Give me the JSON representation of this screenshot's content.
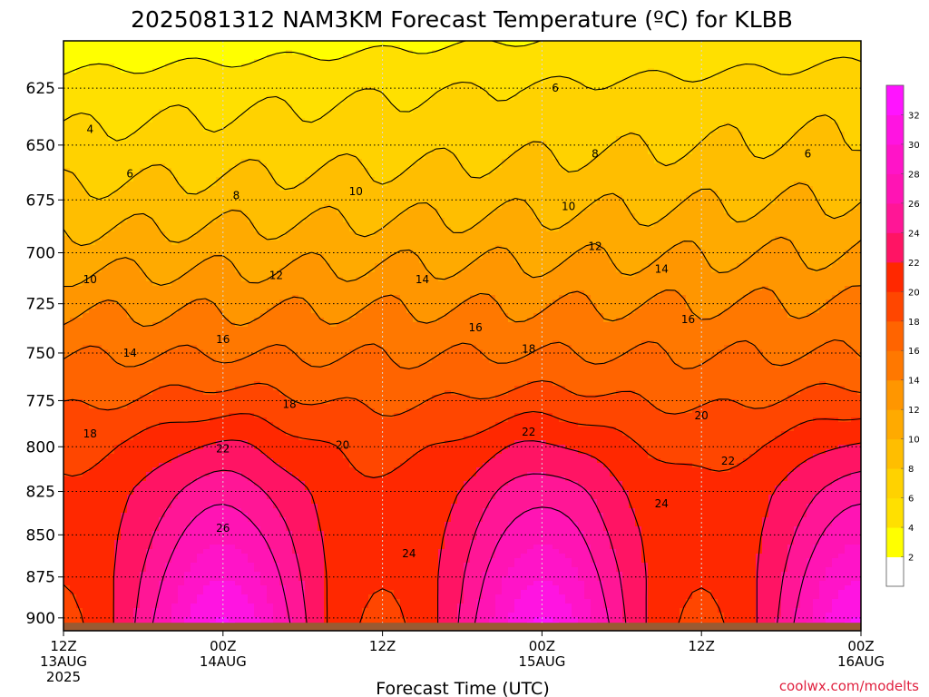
{
  "title": "2025081312 NAM3KM Forecast Temperature (ºC) for KLBB",
  "credit": "coolwx.com/modelts",
  "chart_data": {
    "type": "heatmap",
    "title": "2025081312 NAM3KM Forecast Temperature (ºC) for KLBB",
    "xlabel": "Forecast Time (UTC)",
    "ylabel": "",
    "x_ticks": [
      {
        "hour": 0,
        "lines": [
          "12Z",
          "13AUG",
          "2025"
        ]
      },
      {
        "hour": 12,
        "lines": [
          "00Z",
          "14AUG"
        ]
      },
      {
        "hour": 24,
        "lines": [
          "12Z"
        ]
      },
      {
        "hour": 36,
        "lines": [
          "00Z",
          "15AUG"
        ]
      },
      {
        "hour": 48,
        "lines": [
          "12Z"
        ]
      },
      {
        "hour": 60,
        "lines": [
          "00Z",
          "16AUG"
        ]
      }
    ],
    "xlim": [
      0,
      60
    ],
    "y_ticks": [
      625,
      650,
      675,
      700,
      725,
      750,
      775,
      800,
      825,
      850,
      875,
      900
    ],
    "ylim": [
      605,
      908
    ],
    "y_scale": "log-pressure (inverted)",
    "grid": true,
    "surface_pressure": 903,
    "colorbar": {
      "levels": [
        0,
        2,
        4,
        6,
        8,
        10,
        12,
        14,
        16,
        18,
        20,
        22,
        24,
        26,
        28,
        30,
        32,
        34
      ],
      "labels": [
        "2",
        "4",
        "6",
        "8",
        "10",
        "12",
        "14",
        "16",
        "18",
        "20",
        "22",
        "24",
        "26",
        "28",
        "30",
        "32"
      ],
      "colors": [
        "#ffffff",
        "#ffff00",
        "#ffe000",
        "#ffd200",
        "#ffbe00",
        "#ffaa00",
        "#ff9600",
        "#ff7800",
        "#ff6400",
        "#ff4600",
        "#ff2800",
        "#ff1464",
        "#ff1696",
        "#ff14b4",
        "#ff14c8",
        "#ff14e1",
        "#ff14ff"
      ]
    },
    "contour_levels": [
      4,
      6,
      8,
      10,
      12,
      14,
      16,
      18,
      20,
      22,
      24,
      26
    ],
    "contour_labels": [
      {
        "text": "4",
        "hour": 2.0,
        "p": 643
      },
      {
        "text": "6",
        "hour": 5.0,
        "p": 663
      },
      {
        "text": "8",
        "hour": 13.0,
        "p": 673
      },
      {
        "text": "10",
        "hour": 2.0,
        "p": 713
      },
      {
        "text": "12",
        "hour": 16.0,
        "p": 711
      },
      {
        "text": "14",
        "hour": 5.0,
        "p": 750
      },
      {
        "text": "16",
        "hour": 12.0,
        "p": 743
      },
      {
        "text": "18",
        "hour": 2.0,
        "p": 793
      },
      {
        "text": "22",
        "hour": 12.0,
        "p": 801
      },
      {
        "text": "26",
        "hour": 12.0,
        "p": 846
      },
      {
        "text": "10",
        "hour": 22.0,
        "p": 671
      },
      {
        "text": "14",
        "hour": 27.0,
        "p": 713
      },
      {
        "text": "18",
        "hour": 17.0,
        "p": 777
      },
      {
        "text": "20",
        "hour": 21.0,
        "p": 799
      },
      {
        "text": "24",
        "hour": 26.0,
        "p": 861
      },
      {
        "text": "16",
        "hour": 31.0,
        "p": 737
      },
      {
        "text": "6",
        "hour": 37.0,
        "p": 625
      },
      {
        "text": "8",
        "hour": 40.0,
        "p": 654
      },
      {
        "text": "10",
        "hour": 38.0,
        "p": 678
      },
      {
        "text": "12",
        "hour": 40.0,
        "p": 697
      },
      {
        "text": "18",
        "hour": 35.0,
        "p": 748
      },
      {
        "text": "22",
        "hour": 35.0,
        "p": 792
      },
      {
        "text": "14",
        "hour": 45.0,
        "p": 708
      },
      {
        "text": "16",
        "hour": 47.0,
        "p": 733
      },
      {
        "text": "20",
        "hour": 48.0,
        "p": 783
      },
      {
        "text": "24",
        "hour": 45.0,
        "p": 832
      },
      {
        "text": "22",
        "hour": 50.0,
        "p": 808
      },
      {
        "text": "6",
        "hour": 56.0,
        "p": 654
      }
    ],
    "field_model": {
      "description": "Temperature vs. time (hours from 12Z 13AUG) and pressure level.",
      "base_levels": [
        605,
        625,
        650,
        675,
        700,
        725,
        750,
        775,
        800,
        825,
        850,
        875,
        903
      ],
      "base_temps": [
        2.5,
        4.8,
        6.5,
        8.6,
        11.0,
        13.5,
        15.8,
        18.0,
        20.2,
        21.6,
        22.2,
        22.6,
        22.8
      ],
      "diurnal_peaks_hour": [
        12,
        36,
        60
      ],
      "diurnal_amplitude_surface": 10,
      "upper_warming_per_hour": 0.045
    }
  }
}
